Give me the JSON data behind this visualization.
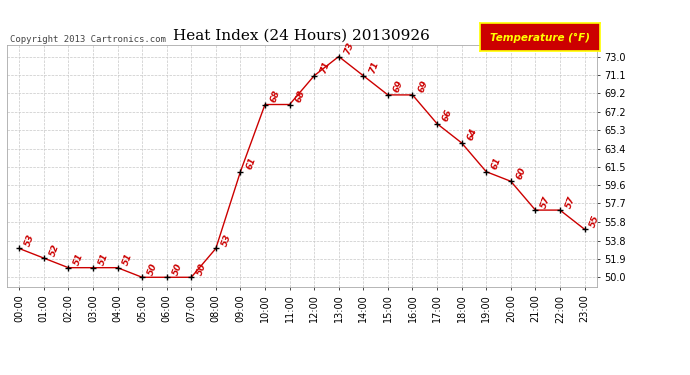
{
  "title": "Heat Index (24 Hours) 20130926",
  "copyright_text": "Copyright 2013 Cartronics.com",
  "legend_label": "Temperature (°F)",
  "hours": [
    0,
    1,
    2,
    3,
    4,
    5,
    6,
    7,
    8,
    9,
    10,
    11,
    12,
    13,
    14,
    15,
    16,
    17,
    18,
    19,
    20,
    21,
    22,
    23
  ],
  "values": [
    53,
    52,
    51,
    51,
    51,
    50,
    50,
    50,
    53,
    61,
    68,
    68,
    71,
    73,
    71,
    69,
    69,
    66,
    64,
    61,
    60,
    57,
    57,
    55
  ],
  "ylim": [
    49.0,
    74.2
  ],
  "yticks": [
    50.0,
    51.9,
    53.8,
    55.8,
    57.7,
    59.6,
    61.5,
    63.4,
    65.3,
    67.2,
    69.2,
    71.1,
    73.0
  ],
  "line_color": "#cc0000",
  "marker_color": "#000000",
  "bg_color": "#ffffff",
  "grid_color": "#c8c8c8",
  "title_color": "#000000",
  "copyright_color": "#444444",
  "legend_bg": "#cc0000",
  "legend_text_color": "#ffff00",
  "label_color": "#cc0000",
  "title_fontsize": 11,
  "label_fontsize": 6.5,
  "tick_fontsize": 7,
  "copyright_fontsize": 6.5,
  "legend_fontsize": 7.5
}
